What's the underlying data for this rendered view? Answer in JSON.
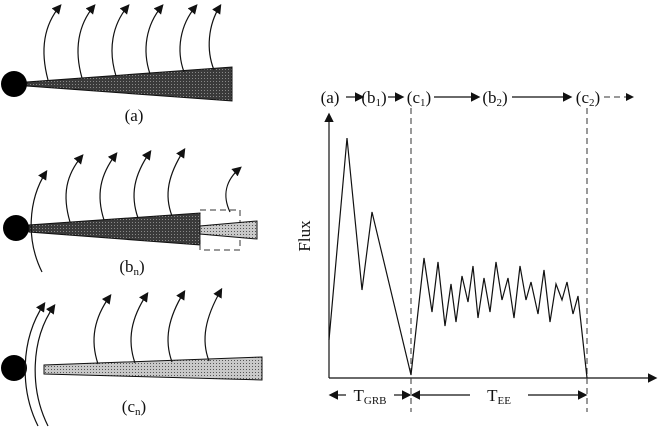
{
  "panels": [
    {
      "main": "(a)"
    },
    {
      "main": "(b",
      "sub": "n",
      "end": ")"
    },
    {
      "main": "(c",
      "sub": "n",
      "end": ")"
    }
  ],
  "plot": {
    "y_label": "Flux",
    "sequence": [
      {
        "main": "(a)"
      },
      {
        "main": "(b",
        "sub": "1",
        "end": ")"
      },
      {
        "main": "(c",
        "sub": "1",
        "end": ")"
      },
      {
        "main": "(b",
        "sub": "2",
        "end": ")"
      },
      {
        "main": "(c",
        "sub": "2",
        "end": ")"
      }
    ],
    "intervals": [
      {
        "main": "T",
        "sub": "GRB"
      },
      {
        "main": "T",
        "sub": "EE"
      }
    ]
  }
}
